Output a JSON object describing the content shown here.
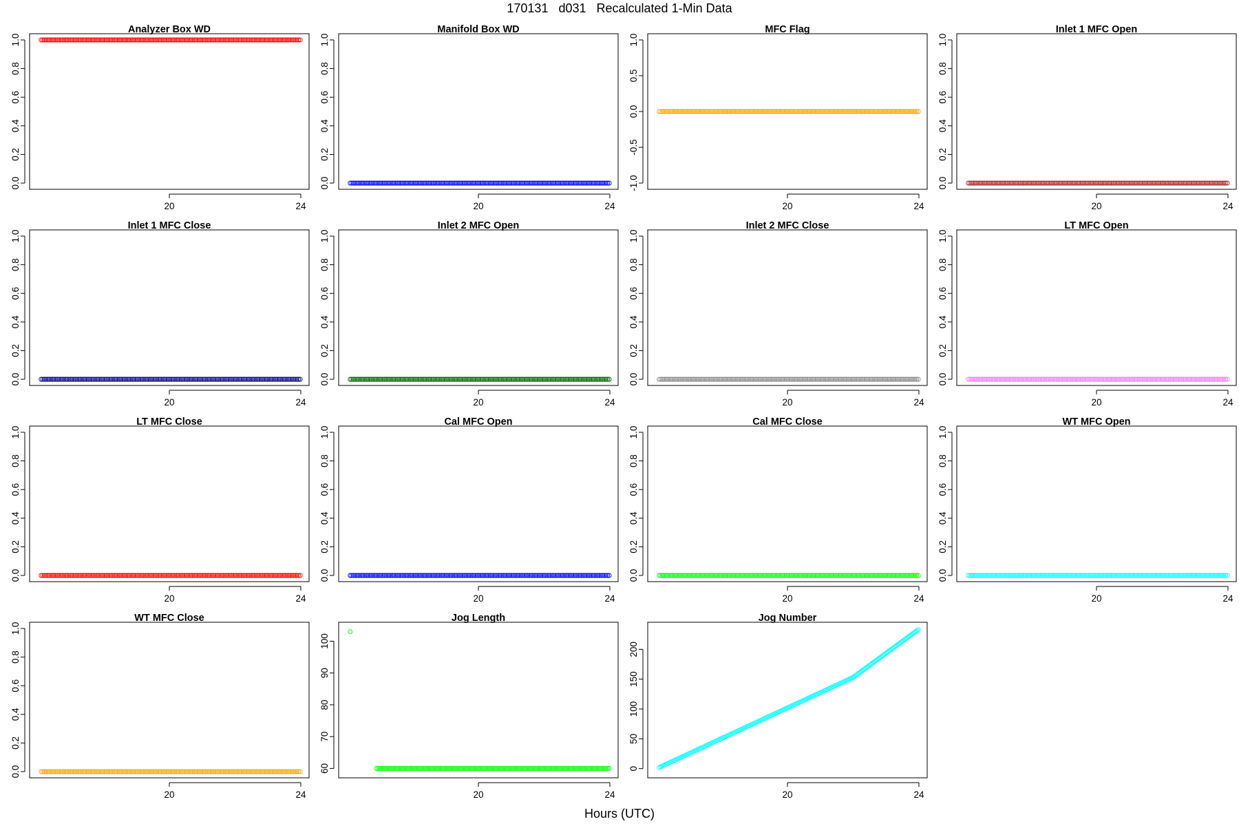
{
  "title": "170131   d031   Recalculated 1-Min Data",
  "xlabel": "Hours (UTC)",
  "chart_data": [
    {
      "type": "scatter",
      "title": "Analyzer Box WD",
      "color": "#ff0000",
      "xlim": [
        16,
        24
      ],
      "x_ticks": [
        20,
        24
      ],
      "ylim": [
        0,
        1
      ],
      "y_ticks": [
        0.0,
        0.2,
        0.4,
        0.6,
        0.8,
        1.0
      ],
      "y_tick_labels": [
        "0.0",
        "0.2",
        "0.4",
        "0.6",
        "0.8",
        "1.0"
      ],
      "series": [
        {
          "x_range": [
            16.1,
            23.98
          ],
          "y_start": 1,
          "y_end": 1,
          "n_points": 160
        }
      ]
    },
    {
      "type": "scatter",
      "title": "Manifold Box WD",
      "color": "#0000ff",
      "xlim": [
        16,
        24
      ],
      "x_ticks": [
        20,
        24
      ],
      "ylim": [
        0,
        1
      ],
      "y_ticks": [
        0.0,
        0.2,
        0.4,
        0.6,
        0.8,
        1.0
      ],
      "y_tick_labels": [
        "0.0",
        "0.2",
        "0.4",
        "0.6",
        "0.8",
        "1.0"
      ],
      "series": [
        {
          "x_range": [
            16.1,
            23.98
          ],
          "y_start": 0,
          "y_end": 0,
          "n_points": 160
        }
      ]
    },
    {
      "type": "scatter",
      "title": "MFC Flag",
      "color": "#ffa500",
      "xlim": [
        16,
        24
      ],
      "x_ticks": [
        20,
        24
      ],
      "ylim": [
        -1,
        1
      ],
      "y_ticks": [
        -1.0,
        -0.5,
        0.0,
        0.5,
        1.0
      ],
      "y_tick_labels": [
        "-1.0",
        "-0.5",
        "0.0",
        "0.5",
        "1.0"
      ],
      "series": [
        {
          "x_range": [
            16.1,
            23.98
          ],
          "y_start": 0,
          "y_end": 0,
          "n_points": 160
        }
      ]
    },
    {
      "type": "scatter",
      "title": "Inlet 1 MFC Open",
      "color": "#a52a2a",
      "xlim": [
        16,
        24
      ],
      "x_ticks": [
        20,
        24
      ],
      "ylim": [
        0,
        1
      ],
      "y_ticks": [
        0.0,
        0.2,
        0.4,
        0.6,
        0.8,
        1.0
      ],
      "y_tick_labels": [
        "0.0",
        "0.2",
        "0.4",
        "0.6",
        "0.8",
        "1.0"
      ],
      "series": [
        {
          "x_range": [
            16.1,
            23.98
          ],
          "y_start": 0,
          "y_end": 0,
          "n_points": 160
        }
      ]
    },
    {
      "type": "scatter",
      "title": "Inlet 1 MFC Close",
      "color": "#00008b",
      "xlim": [
        16,
        24
      ],
      "x_ticks": [
        20,
        24
      ],
      "ylim": [
        0,
        1
      ],
      "y_ticks": [
        0.0,
        0.2,
        0.4,
        0.6,
        0.8,
        1.0
      ],
      "y_tick_labels": [
        "0.0",
        "0.2",
        "0.4",
        "0.6",
        "0.8",
        "1.0"
      ],
      "series": [
        {
          "x_range": [
            16.1,
            23.98
          ],
          "y_start": 0,
          "y_end": 0,
          "n_points": 160
        }
      ]
    },
    {
      "type": "scatter",
      "title": "Inlet 2 MFC Open",
      "color": "#006400",
      "xlim": [
        16,
        24
      ],
      "x_ticks": [
        20,
        24
      ],
      "ylim": [
        0,
        1
      ],
      "y_ticks": [
        0.0,
        0.2,
        0.4,
        0.6,
        0.8,
        1.0
      ],
      "y_tick_labels": [
        "0.0",
        "0.2",
        "0.4",
        "0.6",
        "0.8",
        "1.0"
      ],
      "series": [
        {
          "x_range": [
            16.1,
            23.98
          ],
          "y_start": 0,
          "y_end": 0,
          "n_points": 160
        }
      ]
    },
    {
      "type": "scatter",
      "title": "Inlet 2 MFC Close",
      "color": "#8c8c8c",
      "xlim": [
        16,
        24
      ],
      "x_ticks": [
        20,
        24
      ],
      "ylim": [
        0,
        1
      ],
      "y_ticks": [
        0.0,
        0.2,
        0.4,
        0.6,
        0.8,
        1.0
      ],
      "y_tick_labels": [
        "0.0",
        "0.2",
        "0.4",
        "0.6",
        "0.8",
        "1.0"
      ],
      "series": [
        {
          "x_range": [
            16.1,
            23.98
          ],
          "y_start": 0,
          "y_end": 0,
          "n_points": 160
        }
      ]
    },
    {
      "type": "scatter",
      "title": "LT MFC Open",
      "color": "#ee82ee",
      "xlim": [
        16,
        24
      ],
      "x_ticks": [
        20,
        24
      ],
      "ylim": [
        0,
        1
      ],
      "y_ticks": [
        0.0,
        0.2,
        0.4,
        0.6,
        0.8,
        1.0
      ],
      "y_tick_labels": [
        "0.0",
        "0.2",
        "0.4",
        "0.6",
        "0.8",
        "1.0"
      ],
      "series": [
        {
          "x_range": [
            16.1,
            23.98
          ],
          "y_start": 0,
          "y_end": 0,
          "n_points": 160
        }
      ]
    },
    {
      "type": "scatter",
      "title": "LT MFC Close",
      "color": "#ff0000",
      "xlim": [
        16,
        24
      ],
      "x_ticks": [
        20,
        24
      ],
      "ylim": [
        0,
        1
      ],
      "y_ticks": [
        0.0,
        0.2,
        0.4,
        0.6,
        0.8,
        1.0
      ],
      "y_tick_labels": [
        "0.0",
        "0.2",
        "0.4",
        "0.6",
        "0.8",
        "1.0"
      ],
      "series": [
        {
          "x_range": [
            16.1,
            23.98
          ],
          "y_start": 0,
          "y_end": 0,
          "n_points": 160
        }
      ]
    },
    {
      "type": "scatter",
      "title": "Cal MFC Open",
      "color": "#0000ff",
      "xlim": [
        16,
        24
      ],
      "x_ticks": [
        20,
        24
      ],
      "ylim": [
        0,
        1
      ],
      "y_ticks": [
        0.0,
        0.2,
        0.4,
        0.6,
        0.8,
        1.0
      ],
      "y_tick_labels": [
        "0.0",
        "0.2",
        "0.4",
        "0.6",
        "0.8",
        "1.0"
      ],
      "series": [
        {
          "x_range": [
            16.1,
            23.98
          ],
          "y_start": 0,
          "y_end": 0,
          "n_points": 160
        }
      ]
    },
    {
      "type": "scatter",
      "title": "Cal MFC Close",
      "color": "#00ff00",
      "xlim": [
        16,
        24
      ],
      "x_ticks": [
        20,
        24
      ],
      "ylim": [
        0,
        1
      ],
      "y_ticks": [
        0.0,
        0.2,
        0.4,
        0.6,
        0.8,
        1.0
      ],
      "y_tick_labels": [
        "0.0",
        "0.2",
        "0.4",
        "0.6",
        "0.8",
        "1.0"
      ],
      "series": [
        {
          "x_range": [
            16.1,
            23.98
          ],
          "y_start": 0,
          "y_end": 0,
          "n_points": 160
        }
      ]
    },
    {
      "type": "scatter",
      "title": "WT MFC Open",
      "color": "#00ffff",
      "xlim": [
        16,
        24
      ],
      "x_ticks": [
        20,
        24
      ],
      "ylim": [
        0,
        1
      ],
      "y_ticks": [
        0.0,
        0.2,
        0.4,
        0.6,
        0.8,
        1.0
      ],
      "y_tick_labels": [
        "0.0",
        "0.2",
        "0.4",
        "0.6",
        "0.8",
        "1.0"
      ],
      "series": [
        {
          "x_range": [
            16.1,
            23.98
          ],
          "y_start": 0,
          "y_end": 0,
          "n_points": 160
        }
      ]
    },
    {
      "type": "scatter",
      "title": "WT MFC Close",
      "color": "#ffa500",
      "xlim": [
        16,
        24
      ],
      "x_ticks": [
        20,
        24
      ],
      "ylim": [
        0,
        1
      ],
      "y_ticks": [
        0.0,
        0.2,
        0.4,
        0.6,
        0.8,
        1.0
      ],
      "y_tick_labels": [
        "0.0",
        "0.2",
        "0.4",
        "0.6",
        "0.8",
        "1.0"
      ],
      "series": [
        {
          "x_range": [
            16.1,
            23.98
          ],
          "y_start": 0,
          "y_end": 0,
          "n_points": 160
        }
      ]
    },
    {
      "type": "scatter",
      "title": "Jog Length",
      "color": "#00ff00",
      "xlim": [
        16,
        24
      ],
      "x_ticks": [
        20,
        24
      ],
      "ylim": [
        59,
        104
      ],
      "y_ticks": [
        60,
        70,
        80,
        90,
        100
      ],
      "y_tick_labels": [
        "60",
        "70",
        "80",
        "90",
        "100"
      ],
      "points": [
        [
          16.1,
          103
        ]
      ],
      "series": [
        {
          "x_range": [
            16.9,
            23.98
          ],
          "y_start": 60,
          "y_end": 60,
          "n_points": 150
        }
      ]
    },
    {
      "type": "scatter",
      "title": "Jog Number",
      "color": "#00ffff",
      "xlim": [
        16,
        24
      ],
      "x_ticks": [
        20,
        24
      ],
      "ylim": [
        -5,
        235
      ],
      "y_ticks": [
        0,
        50,
        100,
        150,
        200
      ],
      "y_tick_labels": [
        "0",
        "50",
        "100",
        "150",
        "200"
      ],
      "series": [
        {
          "x_range": [
            16.1,
            22.0
          ],
          "y_start": 2,
          "y_end": 153,
          "n_points": 140
        },
        {
          "x_range": [
            22.0,
            23.98
          ],
          "y_start": 153,
          "y_end": 233,
          "n_points": 60
        }
      ]
    }
  ]
}
